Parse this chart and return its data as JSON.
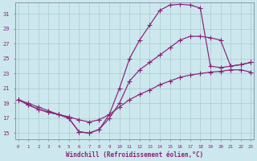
{
  "xlabel": "Windchill (Refroidissement éolien,°C)",
  "background_color": "#cce8ee",
  "grid_color": "#aacccc",
  "line_color": "#882277",
  "x_ticks": [
    0,
    1,
    2,
    3,
    4,
    5,
    6,
    7,
    8,
    9,
    10,
    11,
    12,
    13,
    14,
    15,
    16,
    17,
    18,
    19,
    20,
    21,
    22,
    23
  ],
  "y_ticks": [
    15,
    17,
    19,
    21,
    23,
    25,
    27,
    29,
    31
  ],
  "xlim": [
    -0.3,
    23.3
  ],
  "ylim": [
    14.2,
    32.5
  ],
  "line1_y": [
    19.5,
    19.0,
    18.5,
    18.0,
    17.5,
    17.2,
    16.8,
    16.5,
    16.8,
    17.5,
    18.5,
    19.5,
    20.2,
    20.8,
    21.5,
    22.0,
    22.5,
    22.8,
    23.0,
    23.2,
    23.3,
    23.5,
    23.5,
    23.2
  ],
  "line2_y": [
    19.5,
    18.8,
    18.2,
    17.8,
    17.5,
    17.0,
    15.2,
    15.0,
    15.5,
    17.5,
    21.0,
    25.0,
    27.5,
    29.5,
    31.5,
    32.2,
    32.3,
    32.2,
    31.8,
    24.0,
    23.8,
    24.0,
    24.2,
    24.5
  ],
  "line3_y": [
    19.5,
    18.8,
    18.2,
    17.8,
    17.5,
    17.0,
    15.2,
    15.0,
    15.5,
    17.0,
    19.0,
    22.0,
    23.5,
    24.5,
    25.5,
    26.5,
    27.5,
    28.0,
    28.0,
    27.8,
    27.5,
    24.0,
    24.2,
    24.5
  ]
}
